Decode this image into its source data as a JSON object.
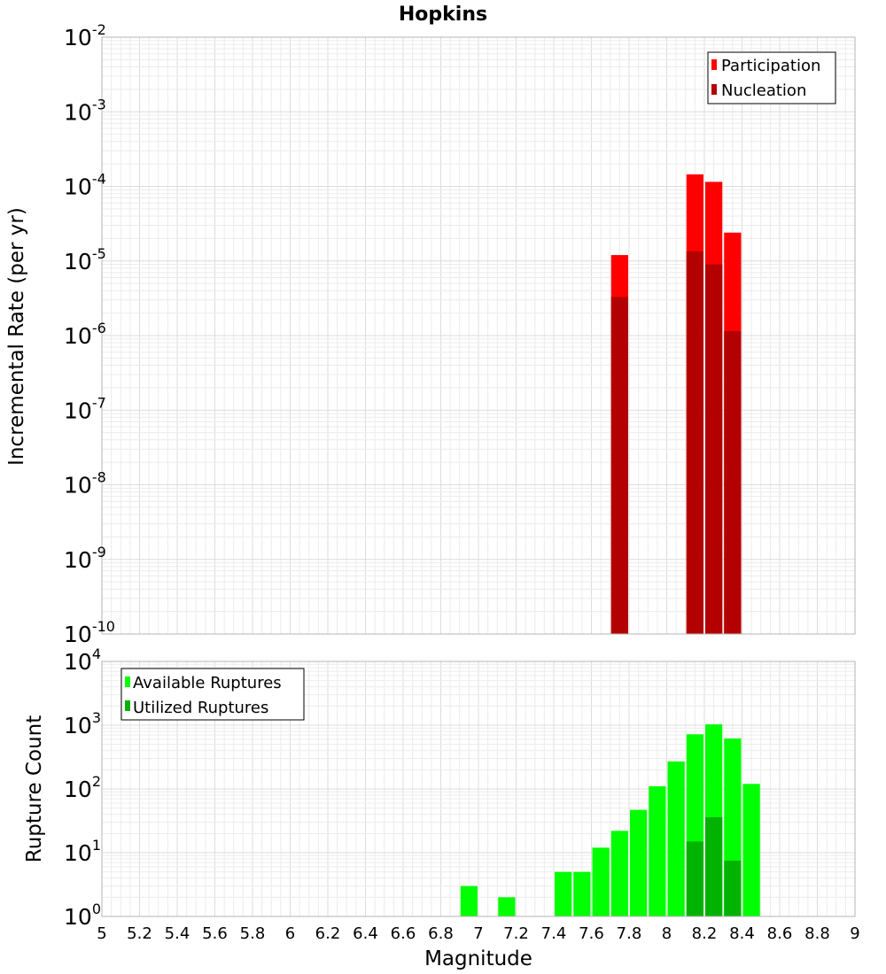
{
  "title": "Hopkins",
  "colors": {
    "participation": "#ff0000",
    "nucleation": "#b30000",
    "available": "#00ff00",
    "utilized": "#00b300"
  },
  "chart_data": [
    {
      "type": "bar",
      "yscale": "log",
      "ylabel": "Incremental Rate (per yr)",
      "ylim_exp": [
        -10,
        -2
      ],
      "legend": {
        "position": "top-right",
        "entries": [
          "Participation",
          "Nucleation"
        ]
      },
      "series": [
        {
          "name": "Participation",
          "x": [
            7.75,
            8.15,
            8.25,
            8.35
          ],
          "values": [
            1.2e-05,
            0.000145,
            0.000115,
            2.4e-05
          ]
        },
        {
          "name": "Nucleation",
          "x": [
            7.75,
            8.15,
            8.25,
            8.35
          ],
          "values": [
            3.3e-06,
            1.35e-05,
            9e-06,
            1.15e-06
          ]
        }
      ]
    },
    {
      "type": "bar",
      "yscale": "log",
      "ylabel": "Rupture Count",
      "ylim_exp": [
        0,
        4
      ],
      "legend": {
        "position": "top-left",
        "entries": [
          "Available Ruptures",
          "Utilized Ruptures"
        ]
      },
      "series": [
        {
          "name": "Available Ruptures",
          "x": [
            6.95,
            7.15,
            7.25,
            7.35,
            7.45,
            7.55,
            7.65,
            7.75,
            7.85,
            7.95,
            8.05,
            8.15,
            8.25,
            8.35,
            8.45
          ],
          "values": [
            3,
            2,
            1,
            1,
            5,
            5,
            12,
            22,
            47,
            110,
            270,
            720,
            1030,
            620,
            120
          ]
        },
        {
          "name": "Utilized Ruptures",
          "x": [
            7.75,
            8.15,
            8.25,
            8.35
          ],
          "values": [
            1,
            15,
            36,
            7.5
          ]
        }
      ]
    }
  ],
  "xaxis": {
    "label": "Magnitude",
    "xlim": [
      5,
      9
    ],
    "ticks": [
      "5",
      "5.2",
      "5.4",
      "5.6",
      "5.8",
      "6",
      "6.2",
      "6.4",
      "6.6",
      "6.8",
      "7",
      "7.2",
      "7.4",
      "7.6",
      "7.8",
      "8",
      "8.2",
      "8.4",
      "8.6",
      "8.8",
      "9"
    ]
  }
}
